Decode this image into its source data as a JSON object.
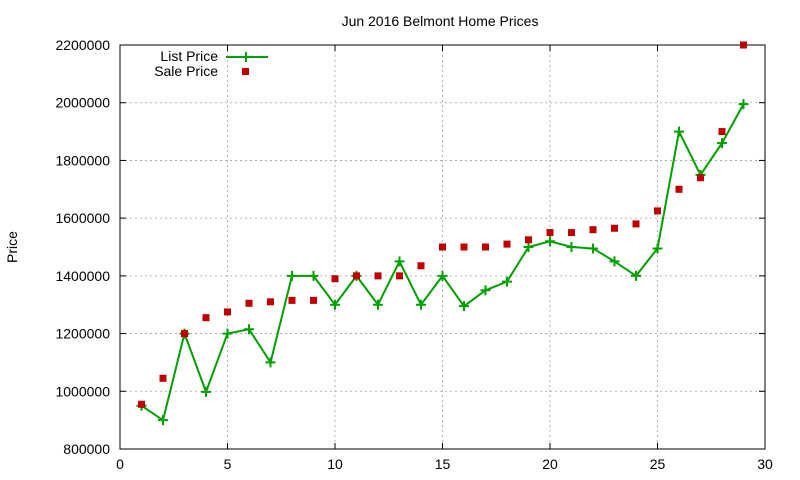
{
  "chart_data": {
    "type": "line",
    "title": "Jun 2016 Belmont Home Prices",
    "ylabel": "Price",
    "xlabel": "",
    "xlim": [
      0,
      30
    ],
    "ylim": [
      800000,
      2200000
    ],
    "xticks": [
      0,
      5,
      10,
      15,
      20,
      25,
      30
    ],
    "yticks": [
      800000,
      1000000,
      1200000,
      1400000,
      1600000,
      1800000,
      2000000,
      2200000
    ],
    "grid": true,
    "legend_position": "top-left",
    "series": [
      {
        "name": "List Price",
        "style": "line+cross",
        "color": "#00a000",
        "x": [
          1,
          2,
          3,
          4,
          5,
          6,
          7,
          8,
          9,
          10,
          11,
          12,
          13,
          14,
          15,
          16,
          17,
          18,
          19,
          20,
          21,
          22,
          23,
          24,
          25,
          26,
          27,
          28,
          29
        ],
        "y": [
          950000,
          900000,
          1200000,
          998000,
          1200000,
          1215000,
          1100000,
          1400000,
          1400000,
          1300000,
          1400000,
          1300000,
          1450000,
          1300000,
          1400000,
          1295000,
          1350000,
          1380000,
          1500000,
          1520000,
          1500000,
          1495000,
          1450000,
          1400000,
          1495000,
          1900000,
          1750000,
          1860000,
          1995000
        ]
      },
      {
        "name": "Sale Price",
        "style": "square",
        "color": "#c00000",
        "x": [
          1,
          2,
          3,
          4,
          5,
          6,
          7,
          8,
          9,
          10,
          11,
          12,
          13,
          14,
          15,
          16,
          17,
          18,
          19,
          20,
          21,
          22,
          23,
          24,
          25,
          26,
          27,
          28,
          29
        ],
        "y": [
          955000,
          1045000,
          1200000,
          1255000,
          1275000,
          1305000,
          1310000,
          1315000,
          1315000,
          1390000,
          1400000,
          1400000,
          1400000,
          1435000,
          1500000,
          1500000,
          1500000,
          1510000,
          1525000,
          1550000,
          1550000,
          1560000,
          1565000,
          1580000,
          1625000,
          1700000,
          1740000,
          1900000,
          2200000
        ]
      }
    ]
  }
}
